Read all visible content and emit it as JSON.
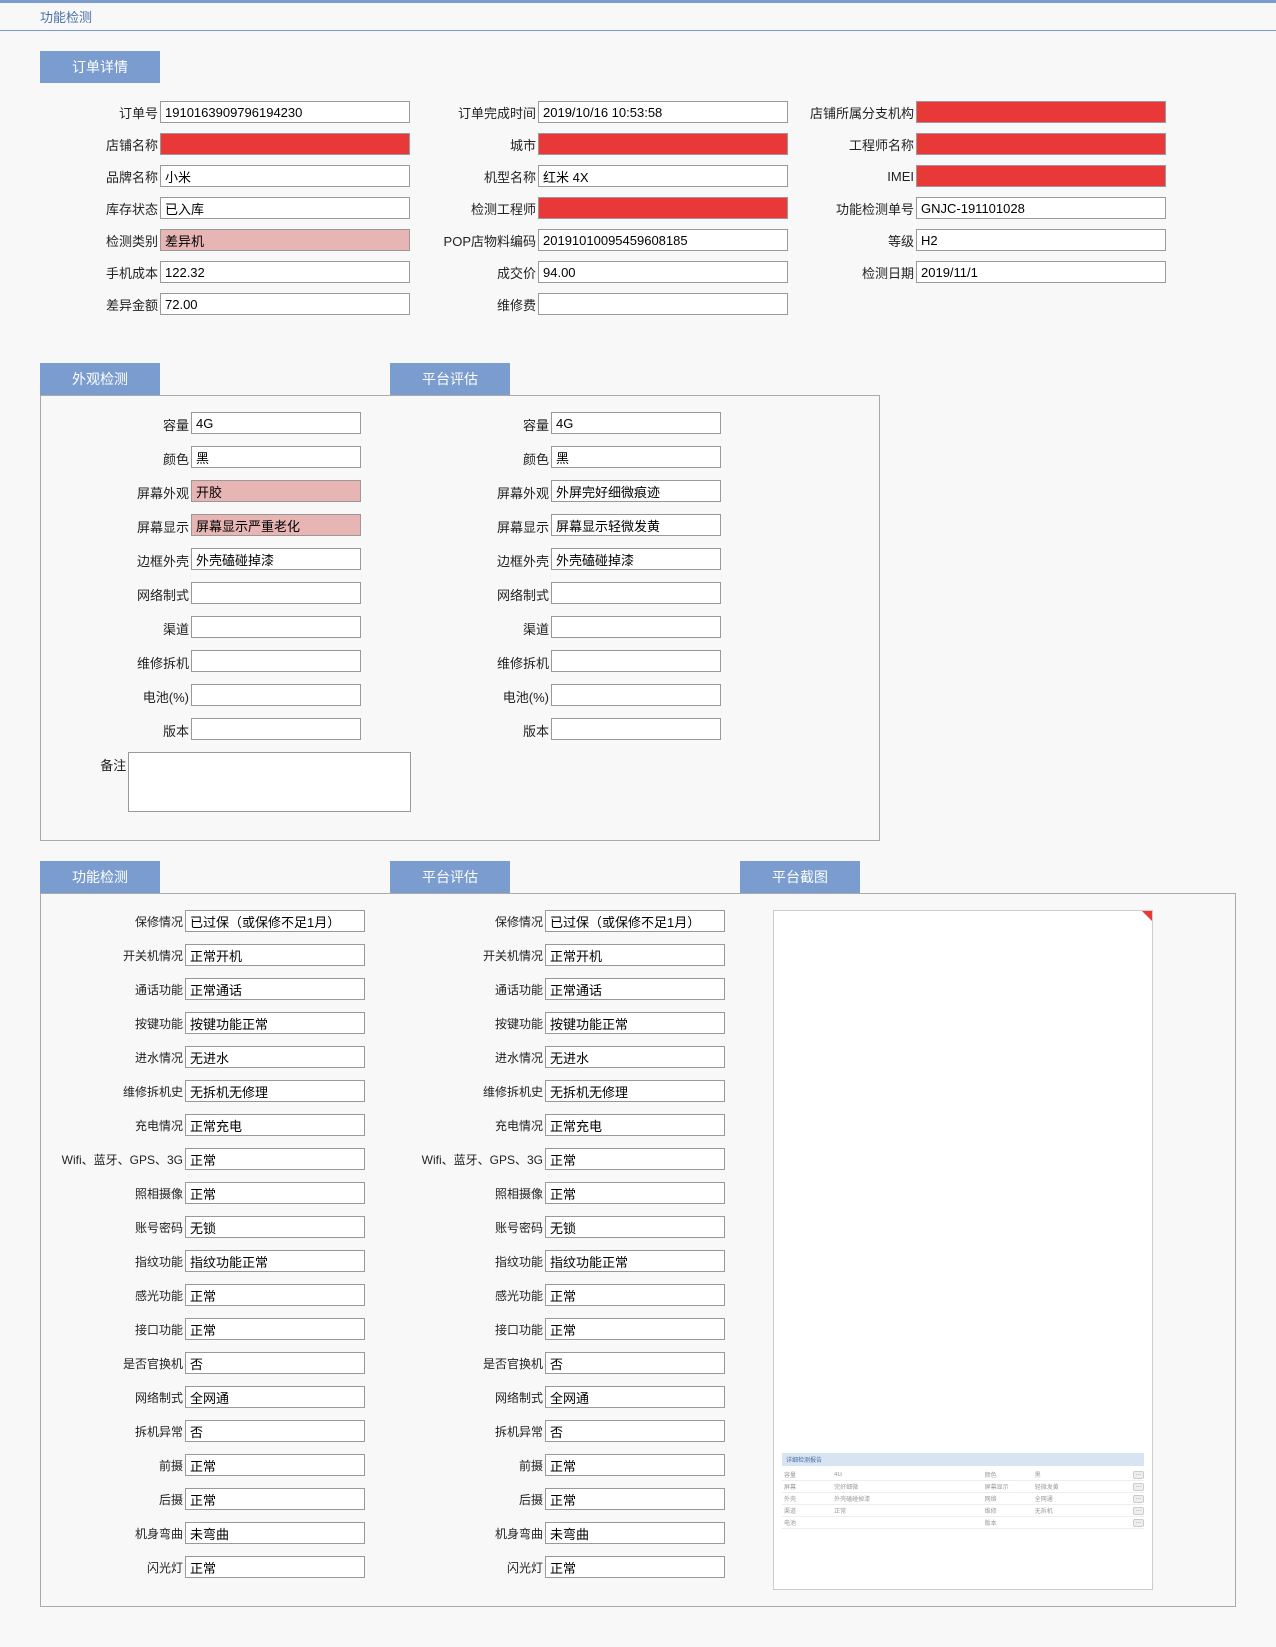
{
  "page": {
    "title": "功能检测"
  },
  "colors": {
    "header_bg": "#7a9cce",
    "header_text": "#ffffff",
    "border": "#999999",
    "redacted": "#e83838",
    "highlight": "#e8b5b5",
    "link": "#4a6fa5"
  },
  "order_detail": {
    "title": "订单详情",
    "rows": [
      [
        {
          "label": "订单号",
          "value": "1910163909796194230",
          "style": ""
        },
        {
          "label": "订单完成时间",
          "value": "2019/10/16 10:53:58",
          "style": ""
        },
        {
          "label": "店铺所属分支机构",
          "value": "",
          "style": "redacted"
        }
      ],
      [
        {
          "label": "店铺名称",
          "value": "",
          "style": "redacted"
        },
        {
          "label": "城市",
          "value": "",
          "style": "redacted"
        },
        {
          "label": "工程师名称",
          "value": "",
          "style": "redacted"
        }
      ],
      [
        {
          "label": "品牌名称",
          "value": "小米",
          "style": ""
        },
        {
          "label": "机型名称",
          "value": "红米 4X",
          "style": ""
        },
        {
          "label": "IMEI",
          "value": "",
          "style": "redacted"
        }
      ],
      [
        {
          "label": "库存状态",
          "value": "已入库",
          "style": ""
        },
        {
          "label": "检测工程师",
          "value": "",
          "style": "redacted"
        },
        {
          "label": "功能检测单号",
          "value": "GNJC-191101028",
          "style": ""
        }
      ],
      [
        {
          "label": "检测类别",
          "value": "差异机",
          "style": "highlight-pink"
        },
        {
          "label": "POP店物料编码",
          "value": "20191010095459608185",
          "style": ""
        },
        {
          "label": "等级",
          "value": "H2",
          "style": ""
        }
      ],
      [
        {
          "label": "手机成本",
          "value": "122.32",
          "style": ""
        },
        {
          "label": "成交价",
          "value": "94.00",
          "style": ""
        },
        {
          "label": "检测日期",
          "value": "2019/11/1",
          "style": ""
        }
      ],
      [
        {
          "label": "差异金额",
          "value": "72.00",
          "style": ""
        },
        {
          "label": "维修费",
          "value": "",
          "style": ""
        },
        null
      ]
    ]
  },
  "appearance": {
    "left_title": "外观检测",
    "right_title": "平台评估",
    "left": [
      {
        "label": "容量",
        "value": "4G",
        "style": ""
      },
      {
        "label": "颜色",
        "value": "黑",
        "style": ""
      },
      {
        "label": "屏幕外观",
        "value": "开胶",
        "style": "highlight-pink"
      },
      {
        "label": "屏幕显示",
        "value": "屏幕显示严重老化",
        "style": "highlight-pink"
      },
      {
        "label": "边框外壳",
        "value": "外壳磕碰掉漆",
        "style": ""
      },
      {
        "label": "网络制式",
        "value": "",
        "style": ""
      },
      {
        "label": "渠道",
        "value": "",
        "style": ""
      },
      {
        "label": "维修拆机",
        "value": "",
        "style": ""
      },
      {
        "label": "电池(%)",
        "value": "",
        "style": ""
      },
      {
        "label": "版本",
        "value": "",
        "style": ""
      }
    ],
    "right": [
      {
        "label": "容量",
        "value": "4G",
        "style": ""
      },
      {
        "label": "颜色",
        "value": "黑",
        "style": ""
      },
      {
        "label": "屏幕外观",
        "value": "外屏完好细微痕迹",
        "style": ""
      },
      {
        "label": "屏幕显示",
        "value": "屏幕显示轻微发黄",
        "style": ""
      },
      {
        "label": "边框外壳",
        "value": "外壳磕碰掉漆",
        "style": ""
      },
      {
        "label": "网络制式",
        "value": "",
        "style": ""
      },
      {
        "label": "渠道",
        "value": "",
        "style": ""
      },
      {
        "label": "维修拆机",
        "value": "",
        "style": ""
      },
      {
        "label": "电池(%)",
        "value": "",
        "style": ""
      },
      {
        "label": "版本",
        "value": "",
        "style": ""
      }
    ],
    "remark_label": "备注",
    "remark_value": ""
  },
  "function_test": {
    "left_title": "功能检测",
    "mid_title": "平台评估",
    "right_title": "平台截图",
    "left": [
      {
        "label": "保修情况",
        "value": "已过保（或保修不足1月）"
      },
      {
        "label": "开关机情况",
        "value": "正常开机"
      },
      {
        "label": "通话功能",
        "value": "正常通话"
      },
      {
        "label": "按键功能",
        "value": "按键功能正常"
      },
      {
        "label": "进水情况",
        "value": "无进水"
      },
      {
        "label": "维修拆机史",
        "value": "无拆机无修理"
      },
      {
        "label": "充电情况",
        "value": "正常充电"
      },
      {
        "label": "Wifi、蓝牙、GPS、3G",
        "value": "正常"
      },
      {
        "label": "照相摄像",
        "value": "正常"
      },
      {
        "label": "账号密码",
        "value": "无锁"
      },
      {
        "label": "指纹功能",
        "value": "指纹功能正常"
      },
      {
        "label": "感光功能",
        "value": "正常"
      },
      {
        "label": "接口功能",
        "value": "正常"
      },
      {
        "label": "是否官换机",
        "value": "否"
      },
      {
        "label": "网络制式",
        "value": "全网通"
      },
      {
        "label": "拆机异常",
        "value": "否"
      },
      {
        "label": "前摄",
        "value": "正常"
      },
      {
        "label": "后摄",
        "value": "正常"
      },
      {
        "label": "机身弯曲",
        "value": "未弯曲"
      },
      {
        "label": "闪光灯",
        "value": "正常"
      }
    ],
    "mid": [
      {
        "label": "保修情况",
        "value": "已过保（或保修不足1月）"
      },
      {
        "label": "开关机情况",
        "value": "正常开机"
      },
      {
        "label": "通话功能",
        "value": "正常通话"
      },
      {
        "label": "按键功能",
        "value": "按键功能正常"
      },
      {
        "label": "进水情况",
        "value": "无进水"
      },
      {
        "label": "维修拆机史",
        "value": "无拆机无修理"
      },
      {
        "label": "充电情况",
        "value": "正常充电"
      },
      {
        "label": "Wifi、蓝牙、GPS、3G",
        "value": "正常"
      },
      {
        "label": "照相摄像",
        "value": "正常"
      },
      {
        "label": "账号密码",
        "value": "无锁"
      },
      {
        "label": "指纹功能",
        "value": "指纹功能正常"
      },
      {
        "label": "感光功能",
        "value": "正常"
      },
      {
        "label": "接口功能",
        "value": "正常"
      },
      {
        "label": "是否官换机",
        "value": "否"
      },
      {
        "label": "网络制式",
        "value": "全网通"
      },
      {
        "label": "拆机异常",
        "value": "否"
      },
      {
        "label": "前摄",
        "value": "正常"
      },
      {
        "label": "后摄",
        "value": "正常"
      },
      {
        "label": "机身弯曲",
        "value": "未弯曲"
      },
      {
        "label": "闪光灯",
        "value": "正常"
      }
    ]
  },
  "mini_screenshot": {
    "header": "详细检测报告",
    "rows": [
      [
        "容量",
        "4G",
        "",
        "",
        "颜色",
        "黑",
        ""
      ],
      [
        "屏幕",
        "完好细微",
        "",
        "",
        "屏幕显示",
        "轻微发黄",
        ""
      ],
      [
        "外壳",
        "外壳磕碰掉漆",
        "",
        "",
        "网络",
        "全网通",
        ""
      ],
      [
        "渠道",
        "正常",
        "",
        "",
        "维修",
        "无拆机",
        ""
      ],
      [
        "电池",
        "",
        "",
        "",
        "版本",
        "",
        ""
      ]
    ]
  }
}
